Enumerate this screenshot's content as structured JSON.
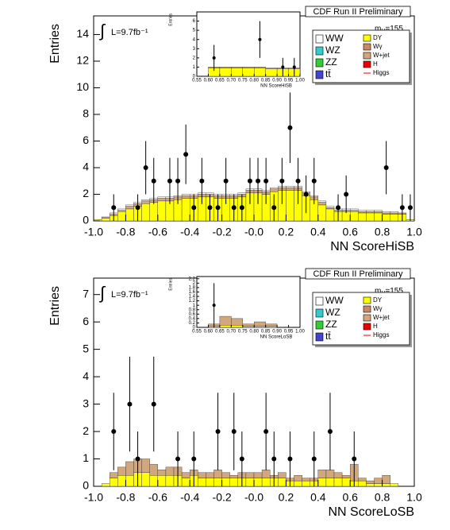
{
  "chart_data": [
    {
      "type": "histogram",
      "title": "CDF Run II Preliminary",
      "y_label": "Entries",
      "x_label": "NN ScoreHiSB",
      "integral_symbol": "∫",
      "lumi": "L=9.7fb⁻¹",
      "mass_m": "m",
      "mass_sub": "H",
      "mass_value": "=155",
      "xlim": [
        -1,
        1
      ],
      "ylim": [
        0,
        15.4
      ],
      "xticks": [
        {
          "value": -1,
          "label": "-1.0"
        },
        -0.8,
        -0.6,
        -0.4,
        -0.2,
        {
          "value": 0,
          "label": "-0.0"
        },
        0.2,
        0.4,
        0.6,
        0.8,
        {
          "value": 1,
          "label": "1.0"
        }
      ],
      "yticks": [
        0,
        2,
        4,
        6,
        8,
        10,
        12,
        14
      ],
      "bins": [
        -1,
        -0.95,
        -0.9,
        -0.85,
        -0.8,
        -0.75,
        -0.7,
        -0.65,
        -0.6,
        -0.55,
        -0.5,
        -0.45,
        -0.4,
        -0.35,
        -0.3,
        -0.25,
        -0.2,
        -0.15,
        -0.1,
        -0.05,
        0,
        0.05,
        0.1,
        0.15,
        0.2,
        0.25,
        0.3,
        0.35,
        0.4,
        0.45,
        0.5,
        0.55,
        0.6,
        0.65,
        0.7,
        0.75,
        0.8,
        0.85,
        0.9,
        0.95,
        1
      ],
      "series": [
        {
          "name": "DY",
          "color": "#ffff00",
          "values": [
            0.1,
            0.2,
            0.4,
            0.7,
            0.9,
            1.1,
            1.3,
            1.4,
            1.5,
            1.5,
            1.6,
            1.7,
            1.7,
            1.8,
            1.8,
            1.7,
            1.7,
            1.7,
            1.8,
            2.1,
            2.1,
            2.0,
            2.2,
            2.3,
            2.3,
            2.3,
            1.9,
            1.6,
            1.2,
            0.9,
            0.7,
            0.7,
            0.7,
            0.6,
            0.6,
            0.6,
            0.5,
            0.5,
            0.5,
            0.1
          ]
        },
        {
          "name": "W+jet",
          "color": "#d2a77d",
          "values": [
            0,
            0.1,
            0.1,
            0.1,
            0.2,
            0.2,
            0.2,
            0.2,
            0.2,
            0.2,
            0.2,
            0.2,
            0.2,
            0.2,
            0.2,
            0.2,
            0.2,
            0.2,
            0.2,
            0.2,
            0.2,
            0.2,
            0.2,
            0.2,
            0.2,
            0.2,
            0.2,
            0.2,
            0.2,
            0.1,
            0.1,
            0.1,
            0.1,
            0.1,
            0.1,
            0.1,
            0.1,
            0.1,
            0.1,
            0
          ]
        },
        {
          "name": "WW",
          "color": "#ffffff",
          "values": [
            0,
            0,
            0.1,
            0.1,
            0.1,
            0.1,
            0.1,
            0.1,
            0.1,
            0.1,
            0.1,
            0.1,
            0.1,
            0.1,
            0.1,
            0.1,
            0.1,
            0.1,
            0.1,
            0.1,
            0.1,
            0.1,
            0.1,
            0.1,
            0.1,
            0.1,
            0.1,
            0.1,
            0.1,
            0.1,
            0.1,
            0.1,
            0.1,
            0.1,
            0.1,
            0.1,
            0.1,
            0.1,
            0,
            0
          ]
        }
      ],
      "data": [
        null,
        null,
        1,
        null,
        null,
        1,
        4,
        3,
        null,
        3,
        3,
        5,
        1,
        3,
        1,
        1,
        3,
        1,
        1,
        3,
        3,
        3,
        1,
        3,
        7,
        3,
        2,
        3,
        null,
        null,
        1,
        2,
        null,
        null,
        null,
        null,
        4,
        null,
        1,
        1
      ],
      "legend": [
        {
          "name": "WW",
          "color": "#ffffff"
        },
        {
          "name": "WZ",
          "color": "#33cccc"
        },
        {
          "name": "ZZ",
          "color": "#33cc33"
        },
        {
          "name": "tt̄",
          "color": "#4444cc"
        },
        {
          "name": "DY",
          "color": "#ffff00"
        },
        {
          "name": "Wγ",
          "color": "#cc8866"
        },
        {
          "name": "W+jet",
          "color": "#d2a77d"
        },
        {
          "name": "H",
          "color": "#ee0000"
        },
        {
          "name": "Higgs",
          "color": "#ee0000"
        }
      ]
    },
    {
      "type": "histogram",
      "y_label": "Entries",
      "x_label": "NN ScoreHiSB",
      "xlim": [
        0.55,
        1
      ],
      "ylim": [
        0,
        7
      ],
      "xticks": [
        {
          "value": 0.55,
          "label": "0.55"
        },
        {
          "value": 0.6,
          "label": "0.60"
        },
        {
          "value": 0.65,
          "label": "0.65"
        },
        {
          "value": 0.7,
          "label": "0.70"
        },
        {
          "value": 0.75,
          "label": "0.75"
        },
        {
          "value": 0.8,
          "label": "0.80"
        },
        {
          "value": 0.85,
          "label": "0.85"
        },
        {
          "value": 0.9,
          "label": "0.90"
        },
        {
          "value": 0.95,
          "label": "0.95"
        },
        {
          "value": 1,
          "label": "1.00"
        }
      ],
      "yticks": [
        0,
        1,
        2,
        3,
        4,
        5,
        6
      ],
      "bins": [
        0.55,
        0.6,
        0.65,
        0.7,
        0.75,
        0.8,
        0.85,
        0.9,
        0.95,
        1
      ],
      "series": [
        {
          "color": "#ffff00",
          "values": [
            0,
            0.9,
            0.9,
            0.9,
            0.9,
            0.9,
            0.8,
            0.8,
            0.8
          ]
        },
        {
          "color": "#d2a77d",
          "values": [
            0,
            0.1,
            0.1,
            0.1,
            0.1,
            0.1,
            0.1,
            0.1,
            0.1
          ]
        }
      ],
      "data": [
        null,
        2,
        null,
        null,
        null,
        4,
        null,
        1,
        1
      ]
    },
    {
      "type": "histogram",
      "title": "CDF Run II Preliminary",
      "y_label": "Entries",
      "x_label": "NN ScoreLoSB",
      "integral_symbol": "∫",
      "lumi": "L=9.7fb⁻¹",
      "mass_m": "m",
      "mass_sub": "H",
      "mass_value": "=155",
      "xlim": [
        -1,
        1
      ],
      "ylim": [
        0,
        7.6
      ],
      "xticks": [
        {
          "value": -1,
          "label": "-1.0"
        },
        -0.8,
        -0.6,
        -0.4,
        -0.2,
        {
          "value": 0,
          "label": "-0.0"
        },
        0.2,
        0.4,
        0.6,
        0.8,
        {
          "value": 1,
          "label": "1.0"
        }
      ],
      "yticks": [
        0,
        1,
        2,
        3,
        4,
        5,
        6,
        7
      ],
      "bins": [
        -1,
        -0.95,
        -0.9,
        -0.85,
        -0.8,
        -0.75,
        -0.7,
        -0.65,
        -0.6,
        -0.55,
        -0.5,
        -0.45,
        -0.4,
        -0.35,
        -0.3,
        -0.25,
        -0.2,
        -0.15,
        -0.1,
        -0.05,
        0,
        0.05,
        0.1,
        0.15,
        0.2,
        0.25,
        0.3,
        0.35,
        0.4,
        0.45,
        0.5,
        0.55,
        0.6,
        0.65,
        0.7,
        0.75,
        0.8,
        0.85,
        0.9,
        0.95,
        1
      ],
      "series": [
        {
          "name": "DY",
          "color": "#ffff00",
          "values": [
            0,
            0.1,
            0.3,
            0.4,
            0.4,
            0.5,
            0.5,
            0.4,
            0.4,
            0.4,
            0.4,
            0.3,
            0.4,
            0.3,
            0.3,
            0.3,
            0.3,
            0.3,
            0.3,
            0.3,
            0.3,
            0.3,
            0.3,
            0.3,
            0.2,
            0.2,
            0.2,
            0.2,
            0.3,
            0.3,
            0.3,
            0.3,
            0.2,
            0.2,
            0.1,
            0.1,
            0.1,
            0.1,
            0,
            0
          ]
        },
        {
          "name": "W+jet",
          "color": "#d2a77d",
          "values": [
            0,
            0,
            0.2,
            0.3,
            0.5,
            0.5,
            0.5,
            0.4,
            0.2,
            0.3,
            0.3,
            0.2,
            0.2,
            0.2,
            0.2,
            0.3,
            0.2,
            0.1,
            0.2,
            0.2,
            0.2,
            0.3,
            0.1,
            0.2,
            0.1,
            0.2,
            0.1,
            0.1,
            0.3,
            0.3,
            0.2,
            0.1,
            0.6,
            0.1,
            0.1,
            0.2,
            0.3,
            0,
            0,
            0
          ]
        }
      ],
      "data": [
        null,
        null,
        2,
        null,
        3,
        1,
        null,
        3,
        null,
        null,
        1,
        null,
        1,
        null,
        null,
        2,
        null,
        2,
        1,
        null,
        null,
        2,
        1,
        null,
        1,
        null,
        null,
        1,
        null,
        2,
        null,
        null,
        1,
        null,
        null,
        null,
        null,
        null,
        null,
        null
      ],
      "legend": [
        {
          "name": "WW",
          "color": "#ffffff"
        },
        {
          "name": "WZ",
          "color": "#33cccc"
        },
        {
          "name": "ZZ",
          "color": "#33cc33"
        },
        {
          "name": "tt̄",
          "color": "#4444cc"
        },
        {
          "name": "DY",
          "color": "#ffff00"
        },
        {
          "name": "Wγ",
          "color": "#cc8866"
        },
        {
          "name": "W+jet",
          "color": "#d2a77d"
        },
        {
          "name": "H",
          "color": "#ee0000"
        },
        {
          "name": "Higgs",
          "color": "#ee0000"
        }
      ]
    },
    {
      "type": "histogram",
      "y_label": "Entries",
      "x_label": "NN ScoreLoSB",
      "xlim": [
        0.55,
        1
      ],
      "ylim": [
        0,
        2.3
      ],
      "xticks": [
        {
          "value": 0.55,
          "label": "0.55"
        },
        {
          "value": 0.6,
          "label": "0.60"
        },
        {
          "value": 0.65,
          "label": "0.65"
        },
        {
          "value": 0.7,
          "label": "0.70"
        },
        {
          "value": 0.75,
          "label": "0.75"
        },
        {
          "value": 0.8,
          "label": "0.80"
        },
        {
          "value": 0.85,
          "label": "0.85"
        },
        {
          "value": 0.9,
          "label": "0.90"
        },
        {
          "value": 0.95,
          "label": "0.95"
        },
        {
          "value": 1,
          "label": "1.00"
        }
      ],
      "yticks": [
        0,
        0.2,
        0.4,
        0.6,
        0.8,
        1,
        1.2,
        1.4,
        1.6,
        1.8,
        2,
        2.2
      ],
      "bins": [
        0.55,
        0.6,
        0.65,
        0.7,
        0.75,
        0.8,
        0.85,
        0.9,
        0.95,
        1
      ],
      "series": [
        {
          "color": "#ffff00",
          "values": [
            0,
            0.05,
            0.1,
            0.1,
            0.05,
            0.05,
            0.05,
            0,
            0
          ]
        },
        {
          "color": "#d2a77d",
          "values": [
            0,
            0.1,
            0.4,
            0.3,
            0.1,
            0.2,
            0.1,
            0,
            0
          ]
        }
      ],
      "data": [
        null,
        1,
        null,
        null,
        null,
        null,
        null,
        null,
        null
      ]
    }
  ]
}
